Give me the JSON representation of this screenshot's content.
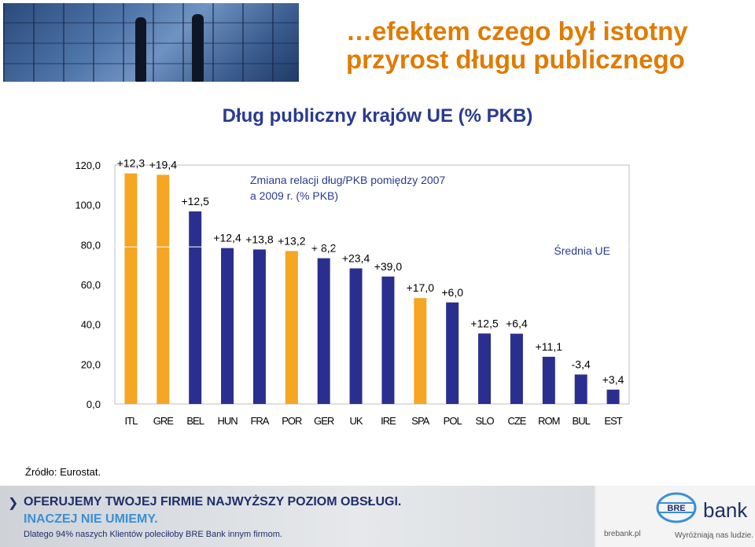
{
  "headline": {
    "line1": "…efektem czego był istotny",
    "line2": "przyrost długu publicznego"
  },
  "chart_title": "Dług publiczny krajów UE (% PKB)",
  "source": "Źródło: Eurostat.",
  "colors": {
    "navy": "#2a2f8f",
    "orange": "#f5a623",
    "title_blue": "#2a3b8f",
    "headline_orange": "#e07b00"
  },
  "footer": {
    "line1": "OFERUJEMY TWOJEJ FIRMIE NAJWYŻSZY POZIOM OBSŁUGI.",
    "line2": "INACZEJ NIE UMIEMY.",
    "line3": "Dlatego 94% naszych Klientów poleciłoby BRE Bank innym firmom.",
    "bank_name": "bank",
    "bank_url": "brebank.pl",
    "bank_slogan": "Wyróżniają nas ludzie.",
    "logo_icon": "bre-bank-logo"
  },
  "chart_data": {
    "type": "bar",
    "title": "Dług publiczny krajów UE (% PKB)",
    "categories": [
      "ITL",
      "GRE",
      "BEL",
      "HUN",
      "FRA",
      "POR",
      "GER",
      "UK",
      "IRE",
      "SPA",
      "POL",
      "SLO",
      "CZE",
      "ROM",
      "BUL",
      "EST"
    ],
    "values": [
      115.8,
      115.1,
      96.7,
      78.3,
      77.6,
      76.8,
      73.2,
      68.1,
      64.0,
      53.2,
      51.0,
      35.4,
      35.3,
      23.7,
      14.8,
      7.2
    ],
    "bar_colors": [
      "#f5a623",
      "#f5a623",
      "#2a2f8f",
      "#2a2f8f",
      "#2a2f8f",
      "#f5a623",
      "#2a2f8f",
      "#2a2f8f",
      "#2a2f8f",
      "#f5a623",
      "#2a2f8f",
      "#2a2f8f",
      "#2a2f8f",
      "#2a2f8f",
      "#2a2f8f",
      "#2a2f8f"
    ],
    "change_labels": [
      "+12,3",
      "+19,4",
      "+12,5",
      "+12,4",
      "+13,8",
      "+13,2",
      "+ 8,2",
      "+23,4",
      "+39,0",
      "+17,0",
      "+6,0",
      "+12,5",
      "+6,4",
      "+11,1",
      "-3,4",
      "+3,4"
    ],
    "yticks": [
      "0,0",
      "20,0",
      "40,0",
      "60,0",
      "80,0",
      "100,0",
      "120,0"
    ],
    "ylim": [
      0,
      120
    ],
    "average": {
      "label": "Średnia UE",
      "value": 78.9
    },
    "annotation": "Zmiana relacji dług/PKB pomiędzy 2007 a 2009 r. (% PKB)",
    "grid": false
  }
}
